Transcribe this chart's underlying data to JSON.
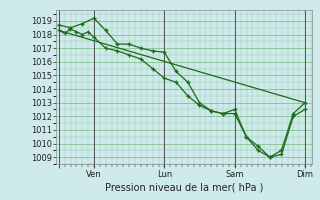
{
  "xlabel": "Pression niveau de la mer( hPa )",
  "bg_color": "#ceeaea",
  "grid_color": "#66aa66",
  "line_color": "#1a6b1a",
  "ylim": [
    1008.5,
    1019.8
  ],
  "yticks": [
    1009,
    1010,
    1011,
    1012,
    1013,
    1014,
    1015,
    1016,
    1017,
    1018,
    1019
  ],
  "xtick_positions": [
    0,
    0.25,
    0.75,
    1.25,
    1.75
  ],
  "xtick_labels": [
    "",
    "Ven",
    "Lun",
    "Sam",
    "Dim"
  ],
  "vline_positions": [
    0.0,
    0.25,
    0.75,
    1.25,
    1.75
  ],
  "straight_line_x": [
    0.0,
    1.75
  ],
  "straight_line_y": [
    1018.3,
    1013.0
  ],
  "line_a_x": [
    0.0,
    0.083,
    0.167,
    0.25,
    0.333,
    0.417,
    0.5,
    0.583,
    0.667,
    0.75,
    0.833,
    0.917,
    1.0,
    1.083,
    1.167,
    1.25,
    1.333,
    1.417,
    1.5,
    1.583,
    1.667,
    1.75
  ],
  "line_a_y": [
    1018.7,
    1018.5,
    1018.8,
    1019.2,
    1018.3,
    1017.3,
    1017.3,
    1017.0,
    1016.8,
    1016.7,
    1015.3,
    1014.5,
    1013.0,
    1012.4,
    1012.2,
    1012.5,
    1010.5,
    1009.8,
    1009.0,
    1009.5,
    1012.2,
    1013.0
  ],
  "line_b_x": [
    0.0,
    0.042,
    0.083,
    0.125,
    0.167,
    0.208,
    0.25,
    0.333,
    0.417,
    0.5,
    0.583,
    0.667,
    0.75,
    0.833,
    0.917,
    1.0,
    1.083,
    1.167,
    1.25,
    1.333,
    1.417,
    1.5,
    1.583,
    1.667,
    1.75
  ],
  "line_b_y": [
    1018.3,
    1018.1,
    1018.4,
    1018.2,
    1018.0,
    1018.2,
    1017.8,
    1017.0,
    1016.8,
    1016.5,
    1016.2,
    1015.5,
    1014.8,
    1014.5,
    1013.5,
    1012.8,
    1012.4,
    1012.2,
    1012.2,
    1010.5,
    1009.5,
    1009.0,
    1009.2,
    1012.0,
    1012.5
  ]
}
